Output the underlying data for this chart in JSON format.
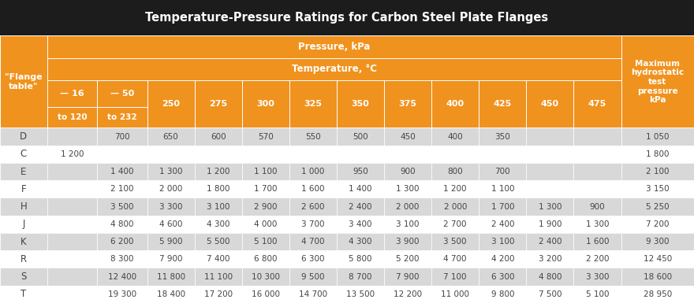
{
  "title": "Temperature-Pressure Ratings for Carbon Steel Plate Flanges",
  "col_header_row1": "Pressure, kPa",
  "col_header_row2": "Temperature, °C",
  "temp_cols_top": [
    "— 16",
    "— 50",
    "250",
    "275",
    "300",
    "325",
    "350",
    "375",
    "400",
    "425",
    "450",
    "475"
  ],
  "temp_cols_bot": [
    "to 120",
    "to 232",
    "",
    "",
    "",
    "",
    "",
    "",
    "",
    "",
    "",
    ""
  ],
  "last_col_header": "Maximum\nhydrostatic\ntest\npressure\nkPa",
  "rows": [
    {
      "flange": "D",
      "values": [
        "",
        "700",
        "650",
        "600",
        "570",
        "550",
        "500",
        "450",
        "400",
        "350",
        "",
        "",
        "1 050"
      ]
    },
    {
      "flange": "C",
      "values": [
        "1 200",
        "",
        "",
        "",
        "",
        "",
        "",
        "",
        "",
        "",
        "",
        "",
        "1 800"
      ]
    },
    {
      "flange": "E",
      "values": [
        "",
        "1 400",
        "1 300",
        "1 200",
        "1 100",
        "1 000",
        "950",
        "900",
        "800",
        "700",
        "",
        "",
        "2 100"
      ]
    },
    {
      "flange": "F",
      "values": [
        "",
        "2 100",
        "2 000",
        "1 800",
        "1 700",
        "1 600",
        "1 400",
        "1 300",
        "1 200",
        "1 100",
        "",
        "",
        "3 150"
      ]
    },
    {
      "flange": "H",
      "values": [
        "",
        "3 500",
        "3 300",
        "3 100",
        "2 900",
        "2 600",
        "2 400",
        "2 000",
        "2 000",
        "1 700",
        "1 300",
        "900",
        "5 250"
      ]
    },
    {
      "flange": "J",
      "values": [
        "",
        "4 800",
        "4 600",
        "4 300",
        "4 000",
        "3 700",
        "3 400",
        "3 100",
        "2 700",
        "2 400",
        "1 900",
        "1 300",
        "7 200"
      ]
    },
    {
      "flange": "K",
      "values": [
        "",
        "6 200",
        "5 900",
        "5 500",
        "5 100",
        "4 700",
        "4 300",
        "3 900",
        "3 500",
        "3 100",
        "2 400",
        "1 600",
        "9 300"
      ]
    },
    {
      "flange": "R",
      "values": [
        "",
        "8 300",
        "7 900",
        "7 400",
        "6 800",
        "6 300",
        "5 800",
        "5 200",
        "4 700",
        "4 200",
        "3 200",
        "2 200",
        "12 450"
      ]
    },
    {
      "flange": "S",
      "values": [
        "",
        "12 400",
        "11 800",
        "11 100",
        "10 300",
        "9 500",
        "8 700",
        "7 900",
        "7 100",
        "6 300",
        "4 800",
        "3 300",
        "18 600"
      ]
    },
    {
      "flange": "T",
      "values": [
        "",
        "19 300",
        "18 400",
        "17 200",
        "16 000",
        "14 700",
        "13 500",
        "12 200",
        "11 000",
        "9 800",
        "7 500",
        "5 100",
        "28 950"
      ]
    }
  ],
  "colors": {
    "title_bg": "#1c1c1c",
    "title_fg": "#ffffff",
    "orange": "#f0921e",
    "row_even": "#ffffff",
    "row_odd": "#d8d8d8",
    "cell_text": "#444444",
    "border_light": "#ffffff",
    "border_data": "#c0c0c0"
  },
  "figsize": [
    8.8,
    3.85
  ],
  "dpi": 100
}
